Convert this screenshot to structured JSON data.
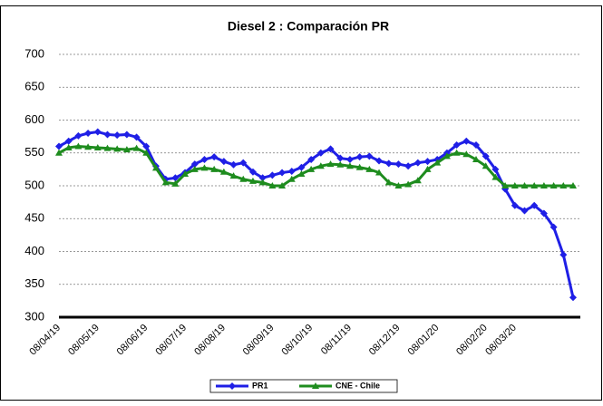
{
  "chart_data": {
    "type": "line",
    "title": "Diesel 2 : Comparación PR",
    "categories": [
      "08/04/19",
      null,
      null,
      null,
      "08/05/19",
      null,
      null,
      null,
      null,
      "08/06/19",
      null,
      null,
      null,
      "08/07/19",
      null,
      null,
      null,
      "08/08/19",
      null,
      null,
      null,
      null,
      "08/09/19",
      null,
      null,
      null,
      "08/10/19",
      null,
      null,
      null,
      "08/11/19",
      null,
      null,
      null,
      null,
      "08/12/19",
      null,
      null,
      null,
      "08/01/20",
      null,
      null,
      null,
      null,
      "08/02/20",
      null,
      null,
      "08/03/20",
      null,
      null,
      null,
      null,
      null,
      null
    ],
    "series": [
      {
        "name": "PR1",
        "color": "#1f1fe6",
        "marker": "diamond",
        "values": [
          560,
          568,
          576,
          580,
          582,
          578,
          577,
          578,
          574,
          560,
          530,
          510,
          512,
          520,
          533,
          540,
          544,
          537,
          532,
          535,
          521,
          512,
          516,
          520,
          522,
          528,
          540,
          550,
          556,
          542,
          540,
          544,
          545,
          538,
          534,
          533,
          530,
          535,
          537,
          540,
          550,
          562,
          568,
          562,
          545,
          525,
          495,
          470,
          462,
          470,
          458,
          437,
          395,
          330
        ]
      },
      {
        "name": "CNE - Chile",
        "color": "#1e8c1e",
        "marker": "triangle",
        "values": [
          550,
          558,
          560,
          559,
          558,
          557,
          556,
          555,
          557,
          550,
          527,
          505,
          503,
          518,
          525,
          527,
          525,
          521,
          515,
          510,
          507,
          505,
          500,
          500,
          510,
          518,
          525,
          530,
          533,
          532,
          530,
          528,
          525,
          520,
          505,
          500,
          502,
          508,
          525,
          535,
          545,
          550,
          548,
          540,
          530,
          513,
          500,
          500,
          500,
          500,
          500,
          500,
          500,
          500
        ]
      }
    ],
    "ylim": [
      300,
      700
    ],
    "yticks": [
      300,
      350,
      400,
      450,
      500,
      550,
      600,
      650,
      700
    ],
    "grid": true
  }
}
